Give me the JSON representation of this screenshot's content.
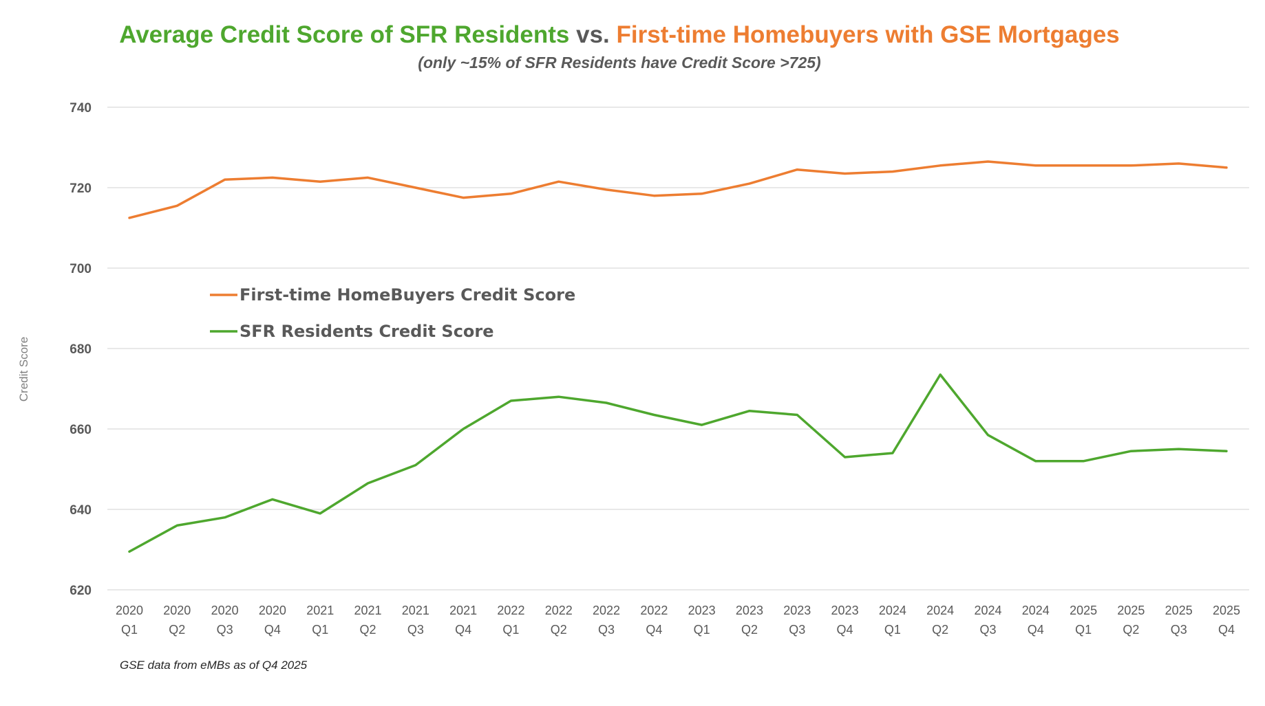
{
  "chart_data": {
    "type": "line",
    "title_parts": [
      {
        "text": "Average Credit Score of SFR Residents",
        "color": "#4ea72e"
      },
      {
        "text": " vs. ",
        "color": "#595959"
      },
      {
        "text": "First-time Homebuyers with GSE Mortgages",
        "color": "#ed7d31"
      }
    ],
    "subtitle": "(only ~15% of SFR Residents have Credit Score >725)",
    "ylabel": "Credit Score",
    "ylim": [
      620,
      740
    ],
    "yticks": [
      620,
      640,
      660,
      680,
      700,
      720,
      740
    ],
    "grid": true,
    "legend_placement": "upper-left inside plot",
    "categories": [
      [
        "2020",
        "Q1"
      ],
      [
        "2020",
        "Q2"
      ],
      [
        "2020",
        "Q3"
      ],
      [
        "2020",
        "Q4"
      ],
      [
        "2021",
        "Q1"
      ],
      [
        "2021",
        "Q2"
      ],
      [
        "2021",
        "Q3"
      ],
      [
        "2021",
        "Q4"
      ],
      [
        "2022",
        "Q1"
      ],
      [
        "2022",
        "Q2"
      ],
      [
        "2022",
        "Q3"
      ],
      [
        "2022",
        "Q4"
      ],
      [
        "2023",
        "Q1"
      ],
      [
        "2023",
        "Q2"
      ],
      [
        "2023",
        "Q3"
      ],
      [
        "2023",
        "Q4"
      ],
      [
        "2024",
        "Q1"
      ],
      [
        "2024",
        "Q2"
      ],
      [
        "2024",
        "Q3"
      ],
      [
        "2024",
        "Q4"
      ],
      [
        "2025",
        "Q1"
      ],
      [
        "2025",
        "Q2"
      ],
      [
        "2025",
        "Q3"
      ],
      [
        "2025",
        "Q4"
      ]
    ],
    "series": [
      {
        "name": "First-time HomeBuyers Credit Score",
        "color": "#ed7d31",
        "values": [
          712.5,
          715.5,
          722,
          722.5,
          721.5,
          722.5,
          720,
          717.5,
          718.5,
          721.5,
          719.5,
          718,
          718.5,
          721,
          724.5,
          723.5,
          724,
          725.5,
          726.5,
          725.5,
          725.5,
          725.5,
          726,
          725
        ]
      },
      {
        "name": "SFR Residents Credit Score",
        "color": "#4ea72e",
        "values": [
          629.5,
          636,
          638,
          642.5,
          639,
          646.5,
          651,
          660,
          667,
          668,
          666.5,
          663.5,
          661,
          664.5,
          663.5,
          653,
          654,
          673.5,
          658.5,
          652,
          652,
          654.5,
          655,
          654.5
        ]
      }
    ],
    "annotation": "GSE data from eMBs as of Q4 2025"
  }
}
